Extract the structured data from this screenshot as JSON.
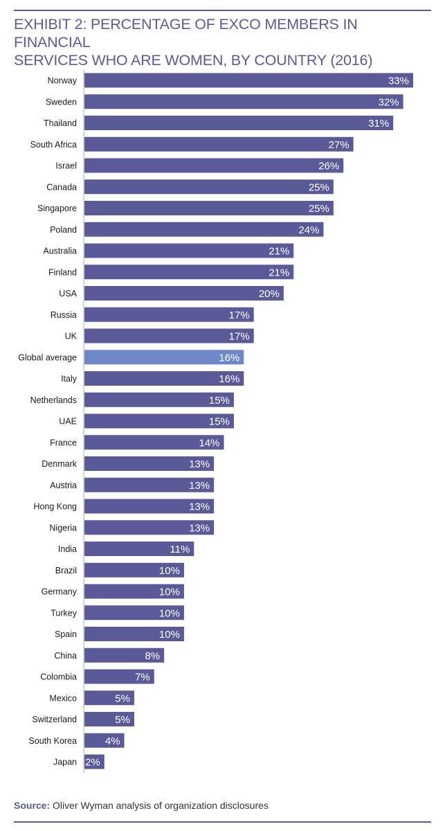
{
  "title_line1": "EXHIBIT 2: PERCENTAGE OF EXCO MEMBERS IN FINANCIAL",
  "title_line2": "SERVICES WHO ARE WOMEN, BY COUNTRY (2016)",
  "source": {
    "label": "Source:",
    "text": "Oliver Wyman analysis of organization disclosures"
  },
  "colors": {
    "bar": "#5a5a99",
    "highlight": "#6f86c7",
    "title": "#5a5a99",
    "value_text": "#ffffff"
  },
  "chart_data": {
    "type": "bar",
    "orientation": "horizontal",
    "title": "EXHIBIT 2: PERCENTAGE OF EXCO MEMBERS IN FINANCIAL SERVICES WHO ARE WOMEN, BY COUNTRY (2016)",
    "xlabel": "",
    "ylabel": "",
    "xlim": [
      0,
      33
    ],
    "unit": "%",
    "highlight_category": "Global average",
    "categories": [
      "Norway",
      "Sweden",
      "Thailand",
      "South Africa",
      "Israel",
      "Canada",
      "Singapore",
      "Poland",
      "Australia",
      "Finland",
      "USA",
      "Russia",
      "UK",
      "Global average",
      "Italy",
      "Netherlands",
      "UAE",
      "France",
      "Denmark",
      "Austria",
      "Hong Kong",
      "Nigeria",
      "India",
      "Brazil",
      "Germany",
      "Turkey",
      "Spain",
      "China",
      "Colombia",
      "Mexico",
      "Switzerland",
      "South Korea",
      "Japan"
    ],
    "values": [
      33,
      32,
      31,
      27,
      26,
      25,
      25,
      24,
      21,
      21,
      20,
      17,
      17,
      16,
      16,
      15,
      15,
      14,
      13,
      13,
      13,
      13,
      11,
      10,
      10,
      10,
      10,
      8,
      7,
      5,
      5,
      4,
      2
    ],
    "labels": [
      "33%",
      "32%",
      "31%",
      "27%",
      "26%",
      "25%",
      "25%",
      "24%",
      "21%",
      "21%",
      "20%",
      "17%",
      "17%",
      "16%",
      "16%",
      "15%",
      "15%",
      "14%",
      "13%",
      "13%",
      "13%",
      "13%",
      "11%",
      "10%",
      "10%",
      "10%",
      "10%",
      "8%",
      "7%",
      "5%",
      "5%",
      "4%",
      "2%"
    ]
  }
}
